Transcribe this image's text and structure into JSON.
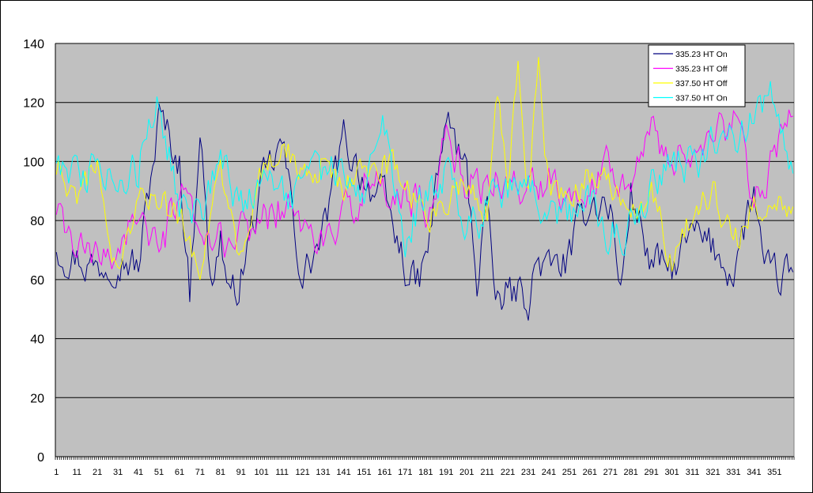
{
  "chart_data": {
    "type": "line",
    "ylim": [
      0,
      140
    ],
    "yticks": [
      "0",
      "20",
      "40",
      "60",
      "80",
      "100",
      "120",
      "140"
    ],
    "xtick_labels": [
      "1",
      "11",
      "21",
      "31",
      "41",
      "51",
      "61",
      "71",
      "81",
      "91",
      "101",
      "111",
      "121",
      "131",
      "141",
      "151",
      "161",
      "171",
      "181",
      "191",
      "201",
      "211",
      "221",
      "231",
      "241",
      "251",
      "261",
      "271",
      "281",
      "291",
      "301",
      "311",
      "321",
      "331",
      "341",
      "351"
    ],
    "n_points": 360,
    "grid": "horizontal",
    "legend_position": "top-right",
    "plot_background": "#c0c0c0",
    "series": [
      {
        "name": "335.23 HT On",
        "color": "#000080",
        "anchors": [
          [
            1,
            72
          ],
          [
            11,
            68
          ],
          [
            21,
            64
          ],
          [
            31,
            70
          ],
          [
            41,
            64
          ],
          [
            51,
            115
          ],
          [
            61,
            100
          ],
          [
            66,
            55
          ],
          [
            71,
            115
          ],
          [
            76,
            58
          ],
          [
            81,
            75
          ],
          [
            86,
            50
          ],
          [
            91,
            62
          ],
          [
            101,
            90
          ],
          [
            111,
            106
          ],
          [
            121,
            60
          ],
          [
            131,
            75
          ],
          [
            141,
            107
          ],
          [
            151,
            95
          ],
          [
            161,
            85
          ],
          [
            171,
            65
          ],
          [
            176,
            57
          ],
          [
            181,
            65
          ],
          [
            191,
            115
          ],
          [
            201,
            95
          ],
          [
            206,
            60
          ],
          [
            211,
            90
          ],
          [
            214,
            50
          ],
          [
            221,
            55
          ],
          [
            231,
            55
          ],
          [
            236,
            67
          ],
          [
            241,
            62
          ],
          [
            251,
            67
          ],
          [
            261,
            88
          ],
          [
            271,
            85
          ],
          [
            276,
            55
          ],
          [
            281,
            90
          ],
          [
            291,
            65
          ],
          [
            301,
            63
          ],
          [
            311,
            75
          ],
          [
            321,
            70
          ],
          [
            331,
            63
          ],
          [
            341,
            90
          ],
          [
            346,
            60
          ],
          [
            351,
            60
          ],
          [
            360,
            62
          ]
        ],
        "noise": 6
      },
      {
        "name": "335.23 HT Off",
        "color": "#ff00ff",
        "anchors": [
          [
            1,
            80
          ],
          [
            11,
            70
          ],
          [
            21,
            65
          ],
          [
            31,
            72
          ],
          [
            41,
            85
          ],
          [
            51,
            65
          ],
          [
            61,
            90
          ],
          [
            71,
            70
          ],
          [
            81,
            72
          ],
          [
            91,
            75
          ],
          [
            101,
            80
          ],
          [
            111,
            85
          ],
          [
            121,
            78
          ],
          [
            131,
            72
          ],
          [
            141,
            78
          ],
          [
            151,
            95
          ],
          [
            161,
            88
          ],
          [
            171,
            90
          ],
          [
            181,
            85
          ],
          [
            191,
            108
          ],
          [
            201,
            92
          ],
          [
            211,
            92
          ],
          [
            221,
            95
          ],
          [
            231,
            88
          ],
          [
            241,
            95
          ],
          [
            251,
            90
          ],
          [
            261,
            95
          ],
          [
            271,
            100
          ],
          [
            281,
            95
          ],
          [
            291,
            110
          ],
          [
            301,
            100
          ],
          [
            311,
            105
          ],
          [
            321,
            108
          ],
          [
            331,
            112
          ],
          [
            341,
            90
          ],
          [
            351,
            100
          ],
          [
            360,
            115
          ]
        ],
        "noise": 6
      },
      {
        "name": "337.50 HT Off",
        "color": "#ffff00",
        "anchors": [
          [
            1,
            100
          ],
          [
            11,
            90
          ],
          [
            21,
            100
          ],
          [
            31,
            60
          ],
          [
            41,
            90
          ],
          [
            51,
            85
          ],
          [
            61,
            80
          ],
          [
            71,
            65
          ],
          [
            81,
            95
          ],
          [
            91,
            65
          ],
          [
            101,
            95
          ],
          [
            111,
            105
          ],
          [
            121,
            95
          ],
          [
            131,
            100
          ],
          [
            141,
            92
          ],
          [
            151,
            95
          ],
          [
            161,
            100
          ],
          [
            171,
            92
          ],
          [
            181,
            80
          ],
          [
            191,
            85
          ],
          [
            201,
            95
          ],
          [
            211,
            85
          ],
          [
            216,
            125
          ],
          [
            221,
            95
          ],
          [
            226,
            130
          ],
          [
            231,
            90
          ],
          [
            236,
            132
          ],
          [
            241,
            90
          ],
          [
            251,
            90
          ],
          [
            261,
            95
          ],
          [
            271,
            90
          ],
          [
            281,
            80
          ],
          [
            291,
            88
          ],
          [
            301,
            68
          ],
          [
            311,
            80
          ],
          [
            321,
            90
          ],
          [
            331,
            70
          ],
          [
            341,
            85
          ],
          [
            351,
            85
          ],
          [
            360,
            88
          ]
        ],
        "noise": 5
      },
      {
        "name": "337.50 HT On",
        "color": "#00ffff",
        "anchors": [
          [
            1,
            100
          ],
          [
            11,
            97
          ],
          [
            21,
            95
          ],
          [
            31,
            100
          ],
          [
            41,
            95
          ],
          [
            46,
            120
          ],
          [
            51,
            120
          ],
          [
            61,
            85
          ],
          [
            71,
            80
          ],
          [
            81,
            100
          ],
          [
            91,
            85
          ],
          [
            101,
            92
          ],
          [
            111,
            88
          ],
          [
            121,
            90
          ],
          [
            131,
            95
          ],
          [
            141,
            100
          ],
          [
            151,
            85
          ],
          [
            161,
            110
          ],
          [
            171,
            75
          ],
          [
            181,
            90
          ],
          [
            191,
            95
          ],
          [
            201,
            75
          ],
          [
            211,
            85
          ],
          [
            221,
            90
          ],
          [
            231,
            90
          ],
          [
            241,
            78
          ],
          [
            251,
            80
          ],
          [
            261,
            88
          ],
          [
            271,
            75
          ],
          [
            281,
            80
          ],
          [
            291,
            90
          ],
          [
            301,
            100
          ],
          [
            311,
            100
          ],
          [
            321,
            105
          ],
          [
            331,
            108
          ],
          [
            341,
            115
          ],
          [
            346,
            122
          ],
          [
            351,
            120
          ],
          [
            360,
            95
          ]
        ],
        "noise": 6
      }
    ]
  }
}
